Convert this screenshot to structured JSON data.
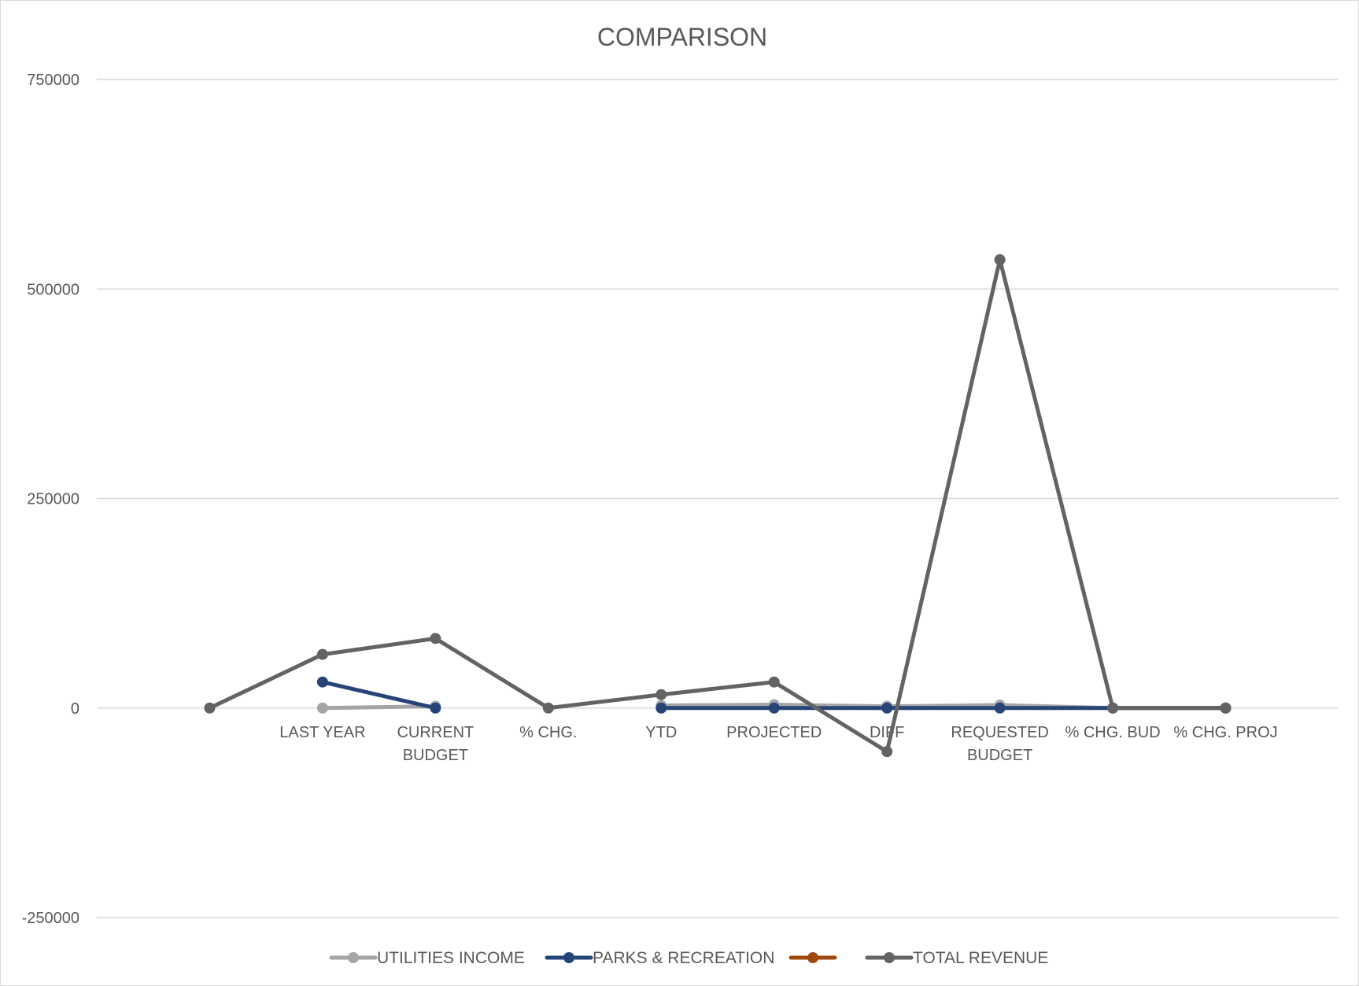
{
  "chart_data": {
    "type": "line",
    "title": "COMPARISON",
    "xlabel": "",
    "ylabel": "",
    "categories": [
      "",
      "LAST YEAR",
      "CURRENT BUDGET",
      "% CHG.",
      "YTD",
      "PROJECTED",
      "DIFF",
      "REQUESTED BUDGET",
      "% CHG. BUD",
      "% CHG. PROJ"
    ],
    "category_lines": [
      [
        ""
      ],
      [
        "LAST YEAR"
      ],
      [
        "CURRENT",
        "BUDGET"
      ],
      [
        "% CHG."
      ],
      [
        "YTD"
      ],
      [
        "PROJECTED"
      ],
      [
        "DIFF"
      ],
      [
        "REQUESTED",
        "BUDGET"
      ],
      [
        "% CHG. BUD"
      ],
      [
        "% CHG. PROJ"
      ]
    ],
    "ylim": [
      -250000,
      750000
    ],
    "yticks": [
      -250000,
      0,
      250000,
      500000,
      750000
    ],
    "ytick_labels": [
      "-250000",
      "0",
      "250000",
      "500000",
      "750000"
    ],
    "grid": true,
    "legend_position": "bottom",
    "series": [
      {
        "name": "UTILITIES INCOME",
        "color": "#a5a5a5",
        "values": [
          null,
          0,
          2000,
          null,
          3000,
          4000,
          2000,
          3500,
          0,
          0
        ]
      },
      {
        "name": "PARKS & RECREATION",
        "color": "#264478",
        "values": [
          null,
          31000,
          0,
          null,
          0,
          0,
          0,
          0,
          0,
          0
        ]
      },
      {
        "name": "",
        "color": "#9e480e",
        "values": [
          null,
          null,
          null,
          null,
          null,
          null,
          null,
          null,
          null,
          null
        ]
      },
      {
        "name": "TOTAL REVENUE",
        "color": "#636363",
        "values": [
          0,
          64000,
          83000,
          0,
          16000,
          31000,
          -52000,
          535000,
          0,
          0
        ]
      }
    ]
  }
}
